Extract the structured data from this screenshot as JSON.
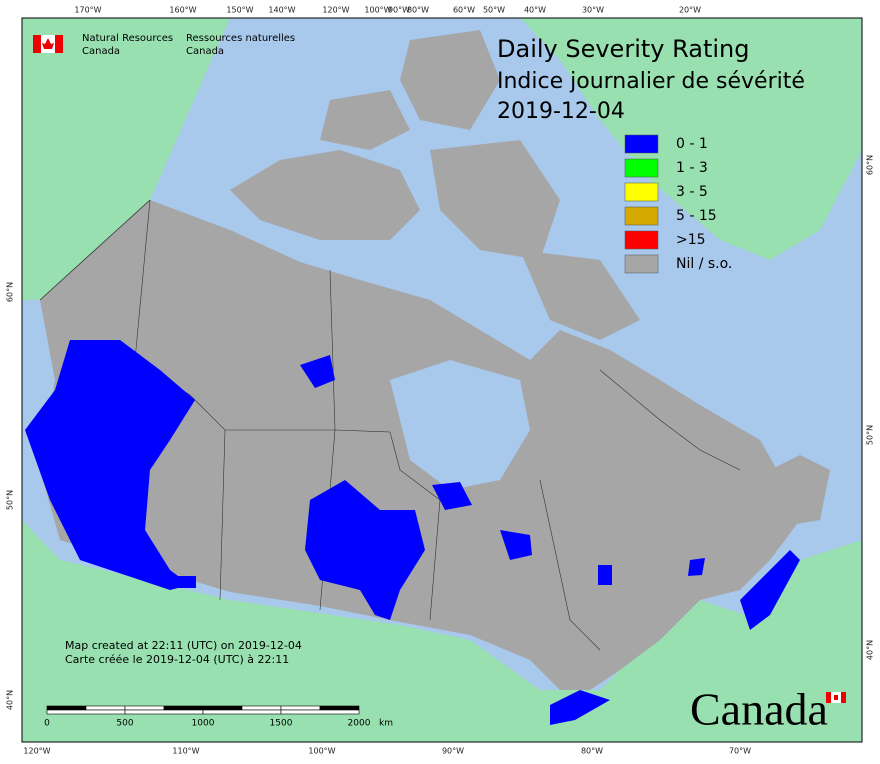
{
  "agency": {
    "english": [
      "Natural Resources",
      "Canada"
    ],
    "french": [
      "Ressources naturelles",
      "Canada"
    ]
  },
  "title": [
    "Daily Severity Rating",
    "Indice journalier de sévérité",
    "2019-12-04"
  ],
  "legend": [
    {
      "label": "0 - 1",
      "color": "#0000ff"
    },
    {
      "label": "1 - 3",
      "color": "#00ff00"
    },
    {
      "label": "3 - 5",
      "color": "#ffff00"
    },
    {
      "label": "5 - 15",
      "color": "#d4aa00"
    },
    {
      "label": ">15",
      "color": "#ff0000"
    },
    {
      "label": "Nil / s.o.",
      "color": "#a6a6a6"
    }
  ],
  "graticule": {
    "top": [
      "170°W",
      "160°W",
      "150°W",
      "140°W",
      "120°W",
      "100°W",
      "90°W",
      "80°W",
      "60°W",
      "50°W",
      "40°W",
      "30°W",
      "20°W"
    ],
    "bottom": [
      "120°W",
      "110°W",
      "100°W",
      "90°W",
      "80°W",
      "70°W"
    ],
    "left": [
      "60°N",
      "50°N",
      "40°N"
    ],
    "right": [
      "60°N",
      "50°N",
      "40°N"
    ]
  },
  "notes": [
    "Map created at 22:11 (UTC) on 2019-12-04",
    "Carte créée le 2019-12-04 (UTC) à 22:11"
  ],
  "scale_bar": {
    "ticks": [
      0,
      500,
      1000,
      1500,
      2000
    ],
    "unit": "km"
  },
  "wordmark": "Canada"
}
